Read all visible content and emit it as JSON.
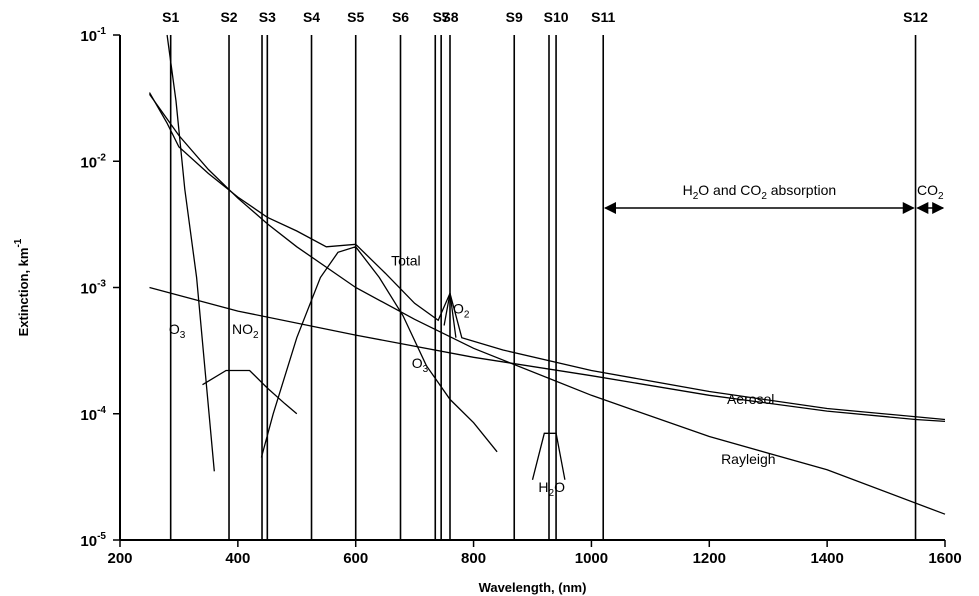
{
  "chart_data": {
    "type": "line",
    "title": "",
    "xlabel": "Wavelength, (nm)",
    "ylabel": "Extinction, km",
    "ylabel_sup": "-1",
    "x_range": [
      200,
      1600
    ],
    "y_range": [
      1e-05,
      0.1
    ],
    "y_scale": "log",
    "x_ticks": [
      200,
      400,
      600,
      800,
      1000,
      1200,
      1400,
      1600
    ],
    "y_ticks": [
      {
        "value": 0.1,
        "base": "10",
        "exp": "-1"
      },
      {
        "value": 0.01,
        "base": "10",
        "exp": "-2"
      },
      {
        "value": 0.001,
        "base": "10",
        "exp": "-3"
      },
      {
        "value": 0.0001,
        "base": "10",
        "exp": "-4"
      },
      {
        "value": 1e-05,
        "base": "10",
        "exp": "-5"
      }
    ],
    "channels": [
      {
        "label": "S1",
        "wavelength": 286
      },
      {
        "label": "S2",
        "wavelength": 385
      },
      {
        "label": "S3",
        "wavelength": 450
      },
      {
        "label": "S4",
        "wavelength": 525
      },
      {
        "label": "S5",
        "wavelength": 600
      },
      {
        "label": "S6",
        "wavelength": 676
      },
      {
        "label": "S7",
        "wavelength": 745
      },
      {
        "label": "S8",
        "wavelength": 760
      },
      {
        "label": "S9",
        "wavelength": 869
      },
      {
        "label": "S10",
        "wavelength": 940
      },
      {
        "label": "S11",
        "wavelength": 1020
      },
      {
        "label": "S12",
        "wavelength": 1550
      }
    ],
    "extra_lines": [
      441,
      735,
      928
    ],
    "series": [
      {
        "name": "Total",
        "points": [
          [
            250,
            0.035
          ],
          [
            280,
            0.02
          ],
          [
            300,
            0.013
          ],
          [
            350,
            0.008
          ],
          [
            400,
            0.0052
          ],
          [
            450,
            0.0036
          ],
          [
            500,
            0.0028
          ],
          [
            550,
            0.0021
          ],
          [
            600,
            0.0022
          ],
          [
            650,
            0.0013
          ],
          [
            700,
            0.00075
          ],
          [
            740,
            0.00055
          ],
          [
            760,
            0.0009
          ],
          [
            780,
            0.0004
          ],
          [
            850,
            0.00032
          ],
          [
            1000,
            0.00022
          ],
          [
            1200,
            0.00015
          ],
          [
            1400,
            0.00011
          ],
          [
            1600,
            9e-05
          ]
        ]
      },
      {
        "name": "Rayleigh",
        "points": [
          [
            250,
            0.034
          ],
          [
            300,
            0.016
          ],
          [
            350,
            0.0086
          ],
          [
            400,
            0.0051
          ],
          [
            450,
            0.0032
          ],
          [
            500,
            0.0021
          ],
          [
            600,
            0.001
          ],
          [
            700,
            0.00056
          ],
          [
            800,
            0.00033
          ],
          [
            1000,
            0.00014
          ],
          [
            1200,
            6.6e-05
          ],
          [
            1400,
            3.6e-05
          ],
          [
            1600,
            1.6e-05
          ]
        ]
      },
      {
        "name": "Aerosol",
        "points": [
          [
            250,
            0.001
          ],
          [
            400,
            0.00065
          ],
          [
            600,
            0.00042
          ],
          [
            800,
            0.00028
          ],
          [
            1000,
            0.0002
          ],
          [
            1200,
            0.00014
          ],
          [
            1400,
            0.000105
          ],
          [
            1550,
            9e-05
          ],
          [
            1600,
            8.7e-05
          ]
        ]
      },
      {
        "name": "O3",
        "points": [
          [
            280,
            0.1
          ],
          [
            295,
            0.03
          ],
          [
            310,
            0.006
          ],
          [
            330,
            0.0012
          ],
          [
            360,
            3.5e-05
          ]
        ]
      },
      {
        "name": "O3",
        "points": [
          [
            440,
            4.5e-05
          ],
          [
            460,
            0.0001
          ],
          [
            500,
            0.0004
          ],
          [
            540,
            0.0012
          ],
          [
            570,
            0.0019
          ],
          [
            600,
            0.0021
          ],
          [
            640,
            0.0012
          ],
          [
            680,
            0.0006
          ],
          [
            720,
            0.00024
          ],
          [
            760,
            0.00013
          ],
          [
            800,
            8.5e-05
          ],
          [
            840,
            5e-05
          ]
        ]
      },
      {
        "name": "NO2",
        "points": [
          [
            340,
            0.00017
          ],
          [
            380,
            0.00022
          ],
          [
            420,
            0.00022
          ],
          [
            450,
            0.00016
          ],
          [
            480,
            0.00012
          ],
          [
            500,
            0.0001
          ]
        ]
      },
      {
        "name": "O2",
        "points": [
          [
            750,
            0.0005
          ],
          [
            760,
            0.0009
          ],
          [
            770,
            0.0004
          ]
        ]
      },
      {
        "name": "H2O",
        "points": [
          [
            900,
            3e-05
          ],
          [
            920,
            7e-05
          ],
          [
            940,
            7e-05
          ],
          [
            955,
            3e-05
          ]
        ]
      }
    ],
    "annotations": [
      {
        "text": "Total",
        "x": 660,
        "y": 0.0015
      },
      {
        "text": "Aerosol",
        "x": 1230,
        "y": 0.00012
      },
      {
        "text": "Rayleigh",
        "x": 1220,
        "y": 4e-05
      },
      {
        "text": "O",
        "sub": "3",
        "x": 283,
        "y": 0.00043
      },
      {
        "text": "O",
        "sub": "3",
        "x": 695,
        "y": 0.00023
      },
      {
        "text": "NO",
        "sub": "2",
        "x": 390,
        "y": 0.00043
      },
      {
        "text": "O",
        "sub": "2",
        "x": 765,
        "y": 0.00062
      },
      {
        "text": "H",
        "sub": "2",
        "text2": "O",
        "x": 910,
        "y": 2.4e-05
      }
    ],
    "bands": [
      {
        "parts": [
          {
            "t": "H"
          },
          {
            "t": "2",
            "sub": true
          },
          {
            "t": "O and CO"
          },
          {
            "t": "2",
            "sub": true
          },
          {
            "t": " absorption"
          }
        ],
        "from": 1020,
        "to": 1550
      },
      {
        "parts": [
          {
            "t": "CO"
          },
          {
            "t": "2",
            "sub": true
          }
        ],
        "from": 1550,
        "to": 1600
      }
    ],
    "grid": false,
    "legend": "none"
  }
}
